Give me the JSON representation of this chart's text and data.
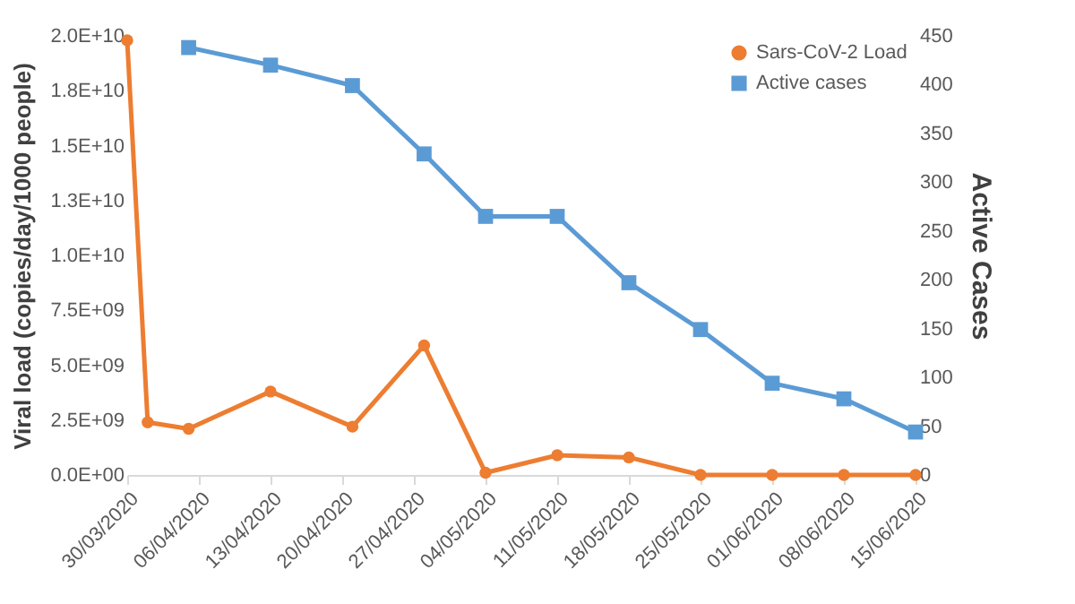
{
  "chart_data": {
    "type": "line",
    "ylabel": "Viral load (copies/day/1000 people)",
    "y2label": "Active Cases",
    "xlim": [
      "2020-03-30",
      "2020-06-15"
    ],
    "xticks": [
      {
        "value": "2020-03-30",
        "label": "30/03/2020"
      },
      {
        "value": "2020-04-06",
        "label": "06/04/2020"
      },
      {
        "value": "2020-04-13",
        "label": "13/04/2020"
      },
      {
        "value": "2020-04-20",
        "label": "20/04/2020"
      },
      {
        "value": "2020-04-27",
        "label": "27/04/2020"
      },
      {
        "value": "2020-05-04",
        "label": "04/05/2020"
      },
      {
        "value": "2020-05-11",
        "label": "11/05/2020"
      },
      {
        "value": "2020-05-18",
        "label": "18/05/2020"
      },
      {
        "value": "2020-05-25",
        "label": "25/05/2020"
      },
      {
        "value": "2020-06-01",
        "label": "01/06/2020"
      },
      {
        "value": "2020-06-08",
        "label": "08/06/2020"
      },
      {
        "value": "2020-06-15",
        "label": "15/06/2020"
      }
    ],
    "ylim": [
      0,
      20000000000
    ],
    "yticks": [
      {
        "value": 0,
        "label": "0.0E+00"
      },
      {
        "value": 2500000000,
        "label": "2.5E+09"
      },
      {
        "value": 5000000000,
        "label": "5.0E+09"
      },
      {
        "value": 7500000000,
        "label": "7.5E+09"
      },
      {
        "value": 10000000000,
        "label": "1.0E+10"
      },
      {
        "value": 12500000000,
        "label": "1.3E+10"
      },
      {
        "value": 15000000000,
        "label": "1.5E+10"
      },
      {
        "value": 17500000000,
        "label": "1.8E+10"
      },
      {
        "value": 20000000000,
        "label": "2.0E+10"
      }
    ],
    "y2lim": [
      0,
      450
    ],
    "y2ticks": [
      0,
      50,
      100,
      150,
      200,
      250,
      300,
      350,
      400,
      450
    ],
    "grid": false,
    "legend": "top right",
    "line_style": "solid",
    "series": [
      {
        "name": "Sars-CoV-2 Load",
        "color": "#ed7d31",
        "marker": "circle",
        "x": [
          "2020-03-30",
          "2020-04-01",
          "2020-04-05",
          "2020-04-13",
          "2020-04-21",
          "2020-04-28",
          "2020-05-04",
          "2020-05-11",
          "2020-05-18",
          "2020-05-25",
          "2020-06-01",
          "2020-06-08",
          "2020-06-15"
        ],
        "values": [
          19800000000,
          2400000000,
          2100000000,
          3800000000,
          2200000000,
          5900000000,
          100000000,
          900000000,
          800000000,
          0,
          0,
          0,
          0
        ]
      },
      {
        "name": "Active cases",
        "color": "#5b9bd5",
        "marker": "square",
        "axis": "y2",
        "x": [
          "2020-04-05",
          "2020-04-13",
          "2020-04-21",
          "2020-04-28",
          "2020-05-04",
          "2020-05-11",
          "2020-05-18",
          "2020-05-25",
          "2020-06-01",
          "2020-06-08",
          "2020-06-15"
        ],
        "values": [
          438,
          420,
          399,
          329,
          265,
          265,
          197,
          149,
          94,
          78,
          44
        ]
      }
    ]
  }
}
